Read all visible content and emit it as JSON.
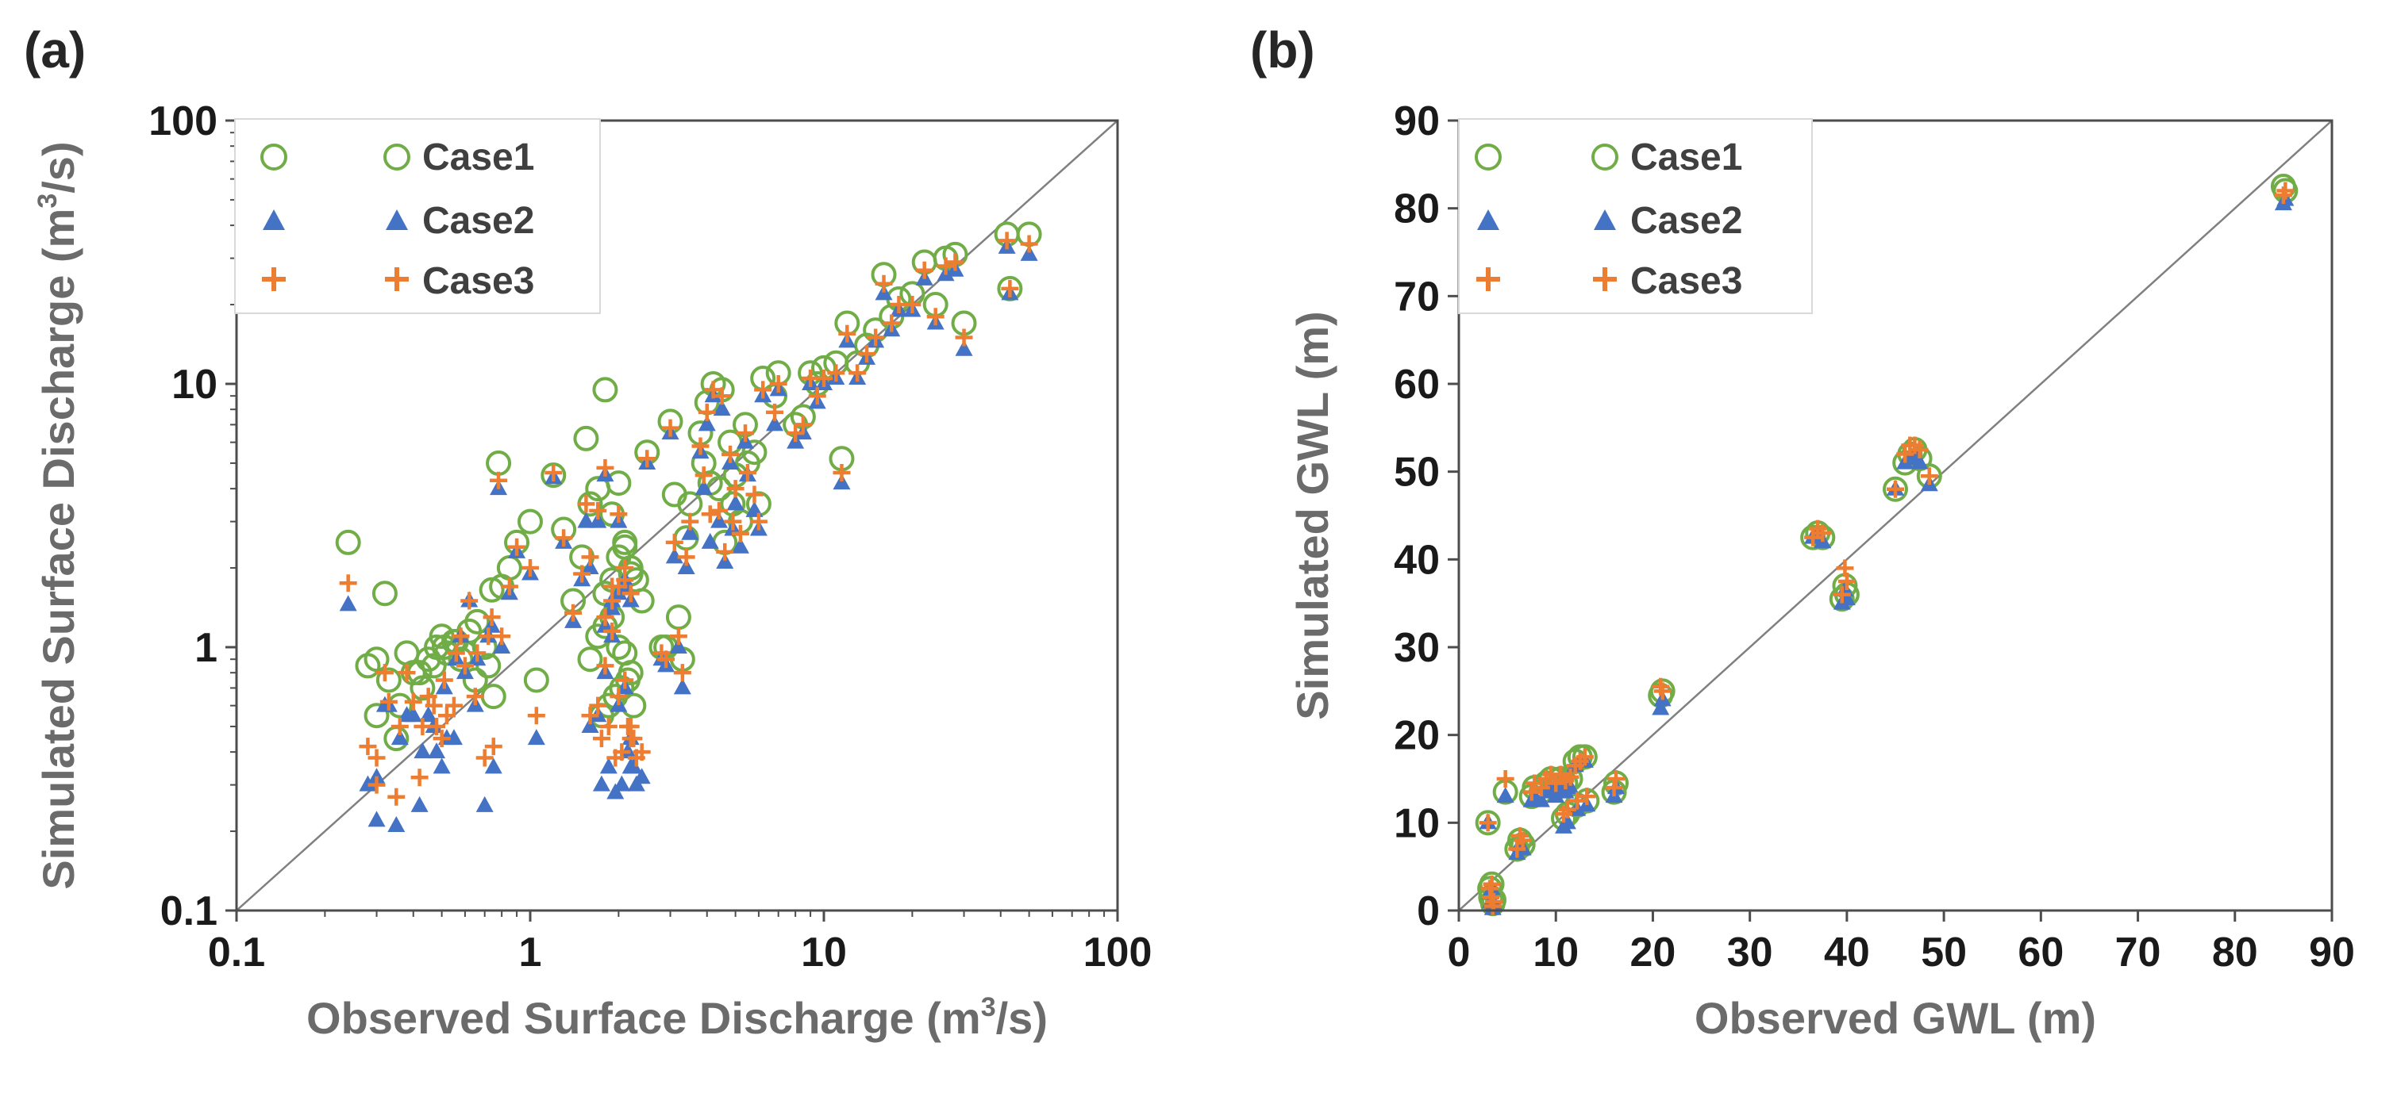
{
  "colors": {
    "case1": "#70ad47",
    "case2": "#4472c4",
    "case3": "#ed7d31",
    "axis": "#4d4d4d",
    "diagonal": "#808080"
  },
  "chart_data": [
    {
      "type": "scatter",
      "panel_label": "(a)",
      "xscale": "log",
      "yscale": "log",
      "xlim": [
        0.1,
        100
      ],
      "ylim": [
        0.1,
        100
      ],
      "xticks": [
        0.1,
        1,
        10,
        100
      ],
      "xtick_labels": [
        "0.1",
        "1",
        "10",
        "100"
      ],
      "yticks": [
        0.1,
        1,
        10,
        100
      ],
      "ytick_labels": [
        "0.1",
        "1",
        "10",
        "100"
      ],
      "xlabel": {
        "main": "Observed Surface Discharge (m",
        "sup": "3",
        "end": "/s)"
      },
      "ylabel": {
        "main": "Simulated Surface Discharge (m",
        "sup": "3",
        "end": "/s)"
      },
      "diagonal": "1:1 line",
      "legend": [
        {
          "name": "Case1",
          "marker": "open-circle"
        },
        {
          "name": "Case2",
          "marker": "filled-triangle"
        },
        {
          "name": "Case3",
          "marker": "plus"
        }
      ],
      "observed": [
        0.24,
        0.28,
        0.3,
        0.32,
        0.35,
        0.38,
        0.42,
        0.45,
        0.48,
        0.5,
        0.52,
        0.55,
        0.58,
        0.62,
        0.66,
        0.7,
        0.75,
        0.78,
        0.3,
        0.33,
        0.36,
        0.4,
        0.43,
        0.47,
        0.51,
        0.56,
        0.6,
        0.65,
        0.72,
        1.05,
        1.0,
        0.9,
        0.85,
        1.2,
        1.3,
        1.5,
        1.6,
        1.7,
        1.8,
        1.9,
        2.0,
        2.1,
        2.2,
        2.3,
        2.4,
        1.75,
        1.85,
        1.95,
        2.05,
        2.15,
        2.25,
        1.6,
        1.7,
        1.8,
        1.9,
        2.0,
        2.1,
        2.2,
        1.8,
        1.9,
        2.0,
        2.1,
        2.2,
        2.5,
        2.8,
        3.0,
        3.2,
        3.5,
        3.8,
        4.0,
        4.2,
        4.5,
        4.8,
        5.0,
        5.5,
        6.0,
        3.1,
        3.4,
        3.9,
        4.4,
        4.9,
        5.4,
        2.9,
        3.3,
        4.1,
        4.6,
        5.2,
        5.8,
        6.2,
        7.0,
        8.0,
        9.0,
        10.0,
        11.0,
        12.0,
        13.0,
        14.0,
        15.0,
        16.0,
        17.0,
        18.0,
        20.0,
        22.0,
        24.0,
        26.0,
        28.0,
        30.0,
        42.0,
        50.0,
        0.74,
        0.8,
        1.4,
        1.55,
        11.5,
        43.0,
        6.8,
        8.5,
        9.5
      ],
      "series": [
        {
          "name": "Case1",
          "values": [
            2.5,
            0.85,
            0.55,
            1.6,
            0.45,
            0.95,
            0.8,
            0.9,
            1.0,
            1.1,
            0.95,
            1.05,
            0.9,
            1.15,
            1.25,
            1.0,
            0.65,
            5.0,
            0.9,
            0.75,
            0.6,
            0.8,
            0.7,
            0.85,
            1.0,
            1.05,
            0.95,
            0.75,
            0.85,
            0.75,
            3.0,
            2.5,
            2.0,
            4.5,
            2.8,
            2.2,
            3.5,
            4.0,
            9.5,
            3.2,
            4.2,
            2.5,
            2.0,
            1.8,
            1.5,
            0.55,
            0.6,
            0.65,
            0.7,
            0.75,
            0.6,
            0.9,
            1.1,
            1.2,
            1.3,
            1.0,
            0.95,
            0.8,
            1.6,
            1.8,
            2.2,
            2.4,
            1.9,
            5.5,
            1.0,
            7.2,
            1.3,
            3.5,
            6.5,
            8.5,
            10.0,
            9.5,
            6.0,
            4.5,
            5.0,
            3.5,
            3.8,
            2.6,
            5.0,
            4.0,
            3.5,
            7.0,
            1.0,
            0.9,
            4.2,
            2.5,
            3.0,
            5.5,
            10.5,
            11.0,
            7.0,
            11.0,
            11.5,
            12.0,
            17.0,
            12.0,
            14.0,
            16.0,
            26.0,
            18.0,
            21.0,
            22.0,
            29.0,
            20.0,
            30.0,
            31.0,
            17.0,
            37.0,
            37.0,
            1.65,
            1.7,
            1.5,
            6.2,
            5.2,
            23.0,
            9.0,
            7.5,
            10.0
          ]
        },
        {
          "name": "Case2",
          "values": [
            1.45,
            0.3,
            0.22,
            0.6,
            0.21,
            0.55,
            0.25,
            0.55,
            0.4,
            0.35,
            0.45,
            0.45,
            1.1,
            1.5,
            0.9,
            0.25,
            0.35,
            4.0,
            0.32,
            0.6,
            0.45,
            0.55,
            0.4,
            0.5,
            0.7,
            0.9,
            0.8,
            0.6,
            1.1,
            0.45,
            1.9,
            2.3,
            1.6,
            4.4,
            2.5,
            1.8,
            2.0,
            3.0,
            4.5,
            1.5,
            3.0,
            1.8,
            0.35,
            0.3,
            0.32,
            0.3,
            0.35,
            0.28,
            0.3,
            0.4,
            0.35,
            0.5,
            0.55,
            0.8,
            1.1,
            0.6,
            0.7,
            0.45,
            1.2,
            1.4,
            1.6,
            1.7,
            1.5,
            5.0,
            0.9,
            6.5,
            1.0,
            2.7,
            5.5,
            7.0,
            9.0,
            8.0,
            5.0,
            3.5,
            4.5,
            2.8,
            2.2,
            2.0,
            4.0,
            3.0,
            2.8,
            6.0,
            0.85,
            0.7,
            2.5,
            2.1,
            2.4,
            3.3,
            9.0,
            9.5,
            6.0,
            10.0,
            10.0,
            10.5,
            14.5,
            10.5,
            12.5,
            14.5,
            22.0,
            16.0,
            19.0,
            19.0,
            25.0,
            17.0,
            26.0,
            27.0,
            13.5,
            33.0,
            31.0,
            1.2,
            1.0,
            1.25,
            3.0,
            4.2,
            22.0,
            7.0,
            6.5,
            8.5
          ]
        },
        {
          "name": "Case3",
          "values": [
            1.75,
            0.42,
            0.3,
            0.8,
            0.27,
            0.8,
            0.32,
            0.65,
            0.5,
            0.45,
            0.55,
            0.6,
            1.1,
            1.5,
            0.95,
            0.38,
            0.42,
            4.3,
            0.38,
            0.62,
            0.5,
            0.62,
            0.5,
            0.6,
            0.75,
            0.95,
            0.85,
            0.65,
            1.1,
            0.55,
            2.0,
            2.4,
            1.7,
            4.6,
            2.6,
            1.9,
            2.2,
            3.3,
            4.8,
            1.7,
            3.2,
            2.0,
            0.45,
            0.38,
            0.4,
            0.45,
            0.5,
            0.38,
            0.4,
            0.5,
            0.45,
            0.55,
            0.6,
            0.85,
            1.15,
            0.65,
            0.75,
            0.5,
            1.3,
            1.5,
            1.7,
            1.8,
            1.6,
            5.2,
            0.95,
            6.8,
            1.1,
            3.0,
            5.8,
            7.8,
            9.5,
            9.0,
            5.4,
            4.0,
            4.6,
            3.0,
            2.5,
            2.2,
            4.5,
            3.3,
            3.0,
            6.5,
            0.9,
            0.8,
            3.2,
            2.3,
            2.7,
            3.8,
            9.5,
            10.0,
            6.5,
            10.5,
            10.5,
            11.0,
            15.5,
            11.0,
            13.0,
            15.0,
            24.0,
            17.0,
            20.0,
            20.0,
            27.0,
            18.0,
            28.0,
            29.0,
            15.0,
            35.0,
            34.0,
            1.3,
            1.1,
            1.35,
            3.5,
            4.6,
            23.0,
            7.8,
            7.0,
            9.0
          ]
        }
      ]
    },
    {
      "type": "scatter",
      "panel_label": "(b)",
      "xscale": "linear",
      "yscale": "linear",
      "xlim": [
        0,
        90
      ],
      "ylim": [
        0,
        90
      ],
      "xticks": [
        0,
        10,
        20,
        30,
        40,
        50,
        60,
        70,
        80,
        90
      ],
      "xtick_labels": [
        "0",
        "10",
        "20",
        "30",
        "40",
        "50",
        "60",
        "70",
        "80",
        "90"
      ],
      "yticks": [
        0,
        10,
        20,
        30,
        40,
        50,
        60,
        70,
        80,
        90
      ],
      "ytick_labels": [
        "0",
        "10",
        "20",
        "30",
        "40",
        "50",
        "60",
        "70",
        "80",
        "90"
      ],
      "xlabel": {
        "main": "Observed GWL (m)",
        "sup": "",
        "end": ""
      },
      "ylabel": {
        "main": "Simulated GWL (m)",
        "sup": "",
        "end": ""
      },
      "diagonal": "1:1 line",
      "legend": [
        {
          "name": "Case1",
          "marker": "open-circle"
        },
        {
          "name": "Case2",
          "marker": "filled-triangle"
        },
        {
          "name": "Case3",
          "marker": "plus"
        }
      ],
      "observed": [
        3.0,
        3.2,
        3.3,
        3.5,
        3.4,
        3.6,
        4.8,
        6.0,
        6.3,
        6.6,
        7.5,
        7.8,
        8.5,
        9.0,
        9.5,
        10.0,
        10.5,
        11.0,
        11.5,
        12.0,
        12.5,
        13.0,
        10.8,
        11.2,
        12.2,
        13.2,
        16.0,
        16.2,
        20.8,
        21.0,
        36.5,
        37.0,
        37.5,
        39.5,
        39.8,
        40.0,
        45.0,
        46.0,
        46.5,
        47.0,
        47.5,
        48.5,
        85.0,
        85.2
      ],
      "series": [
        {
          "name": "Case1",
          "values": [
            10.0,
            2.5,
            1.5,
            0.8,
            3.0,
            1.2,
            13.5,
            7.0,
            8.0,
            7.5,
            13.0,
            14.0,
            13.5,
            14.5,
            15.0,
            14.0,
            15.0,
            14.5,
            15.0,
            17.0,
            17.5,
            17.5,
            10.5,
            11.0,
            12.0,
            12.5,
            13.5,
            14.5,
            24.5,
            25.0,
            42.5,
            43.0,
            42.5,
            35.5,
            37.0,
            36.0,
            48.0,
            51.0,
            52.0,
            52.5,
            51.5,
            49.5,
            82.5,
            82.0
          ]
        },
        {
          "name": "Case2",
          "values": [
            10.0,
            2.0,
            1.0,
            0.2,
            2.5,
            0.8,
            13.0,
            6.5,
            7.5,
            7.0,
            12.5,
            13.0,
            12.5,
            13.5,
            14.0,
            13.0,
            14.0,
            13.5,
            14.0,
            16.5,
            17.0,
            17.0,
            9.5,
            10.0,
            11.5,
            12.0,
            13.0,
            14.0,
            23.0,
            24.0,
            42.5,
            43.0,
            42.0,
            35.0,
            36.5,
            35.5,
            48.0,
            51.0,
            51.5,
            52.0,
            51.0,
            48.5,
            80.5,
            81.0
          ]
        },
        {
          "name": "Case3",
          "values": [
            10.0,
            2.5,
            1.5,
            0.5,
            3.0,
            1.0,
            15.0,
            7.0,
            8.5,
            8.0,
            13.5,
            14.5,
            14.0,
            15.0,
            15.5,
            14.5,
            15.5,
            14.8,
            15.2,
            16.5,
            17.0,
            17.5,
            11.0,
            11.5,
            12.5,
            13.0,
            14.0,
            15.0,
            25.5,
            25.0,
            42.5,
            43.5,
            43.0,
            36.0,
            39.0,
            37.5,
            48.0,
            52.0,
            53.0,
            53.0,
            52.5,
            49.5,
            81.5,
            82.0
          ]
        }
      ]
    }
  ]
}
